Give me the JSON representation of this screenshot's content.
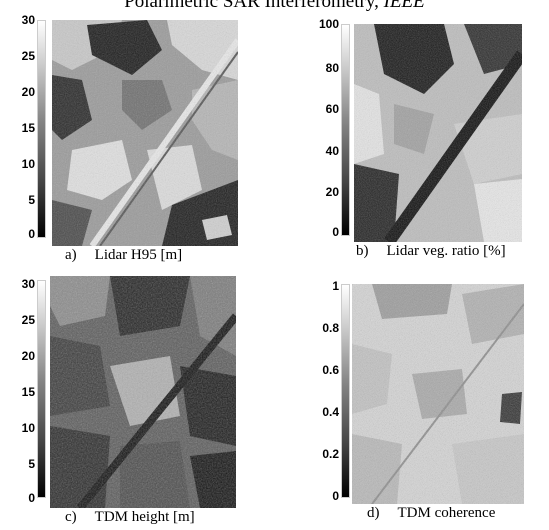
{
  "header": {
    "text": "Polarimetric SAR Interferometry,",
    "venue": "IEEE"
  },
  "panels": [
    {
      "letter": "a)",
      "caption": "Lidar H95 [m]",
      "colorbar_ticks": [
        "30",
        "25",
        "20",
        "15",
        "10",
        "5",
        "0"
      ]
    },
    {
      "letter": "b)",
      "caption": "Lidar veg. ratio [%]",
      "colorbar_ticks": [
        "100",
        "80",
        "60",
        "40",
        "20",
        "0"
      ]
    },
    {
      "letter": "c)",
      "caption": "TDM height [m]",
      "colorbar_ticks": [
        "30",
        "25",
        "20",
        "15",
        "10",
        "5",
        "0"
      ]
    },
    {
      "letter": "d)",
      "caption": "TDM coherence",
      "colorbar_ticks": [
        "1",
        "0.8",
        "0.6",
        "0.4",
        "0.2",
        "0"
      ]
    }
  ]
}
